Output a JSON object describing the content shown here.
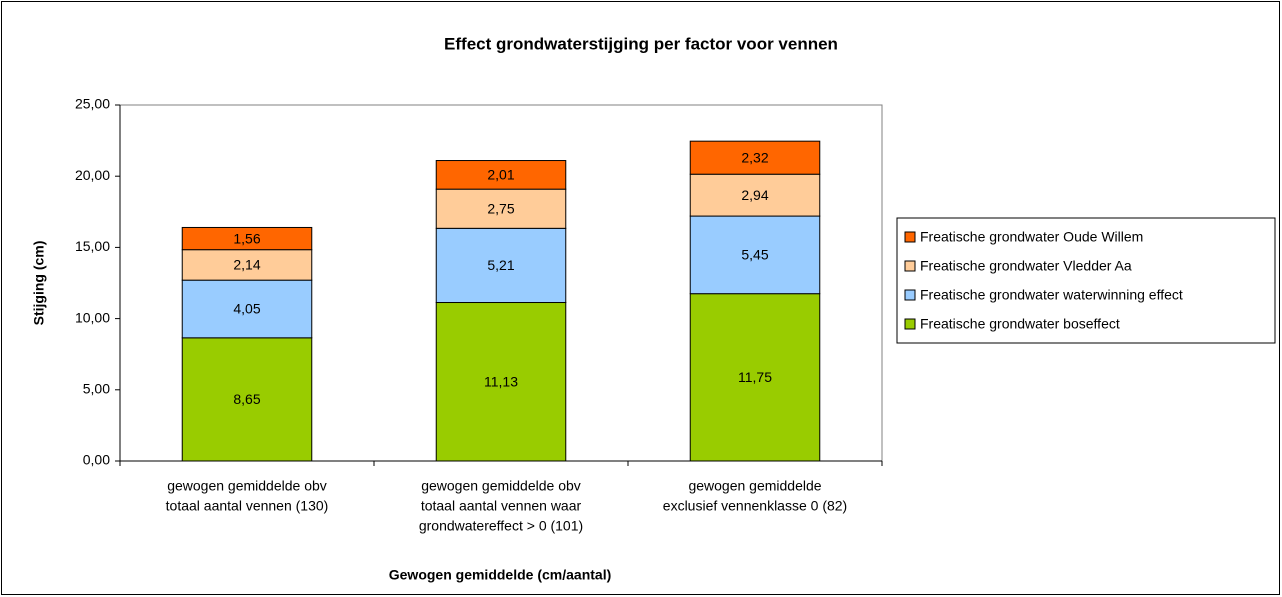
{
  "chart_data": {
    "type": "stacked_bar",
    "title": "Effect grondwaterstijging per factor voor vennen",
    "x_label": "Gewogen gemiddelde (cm/aantal)",
    "y_label": "Stijging (cm)",
    "categories": [
      [
        "gewogen gemiddelde obv",
        "totaal aantal vennen (130)"
      ],
      [
        "gewogen gemiddelde obv",
        "totaal aantal vennen waar",
        "grondwatereffect > 0 (101)"
      ],
      [
        "gewogen gemiddelde",
        "exclusief vennenklasse 0 (82)"
      ]
    ],
    "series": [
      {
        "name": "Freatische grondwater boseffect",
        "color": "#99cc00",
        "values": [
          8.65,
          11.13,
          11.75
        ],
        "value_labels": [
          "8,65",
          "11,13",
          "11,75"
        ]
      },
      {
        "name": "Freatische grondwater waterwinning effect",
        "color": "#99ccff",
        "values": [
          4.05,
          5.21,
          5.45
        ],
        "value_labels": [
          "4,05",
          "5,21",
          "5,45"
        ]
      },
      {
        "name": "Freatische grondwater Vledder Aa",
        "color": "#ffcc99",
        "values": [
          2.14,
          2.75,
          2.94
        ],
        "value_labels": [
          "2,14",
          "2,75",
          "2,94"
        ]
      },
      {
        "name": "Freatische grondwater Oude Willem",
        "color": "#ff6600",
        "values": [
          1.56,
          2.01,
          2.32
        ],
        "value_labels": [
          "1,56",
          "2,01",
          "2,32"
        ]
      }
    ],
    "ylim": [
      0,
      25
    ],
    "yticks": [
      {
        "value": 0,
        "label": "0,00"
      },
      {
        "value": 5,
        "label": "5,00"
      },
      {
        "value": 10,
        "label": "10,00"
      },
      {
        "value": 15,
        "label": "15,00"
      },
      {
        "value": 20,
        "label": "20,00"
      },
      {
        "value": 25,
        "label": "25,00"
      }
    ],
    "legend": "right"
  }
}
